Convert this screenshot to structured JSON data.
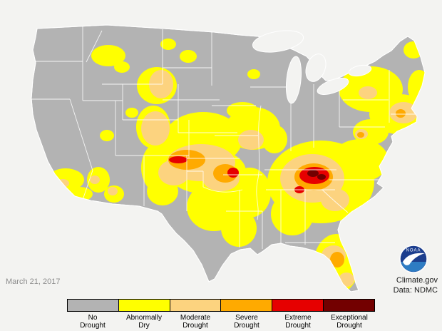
{
  "colors": {
    "background": "#f3f3f1",
    "land": "#b3b3b3",
    "state_line": "#ffffff",
    "d0": "#ffff00",
    "d1": "#fcd37f",
    "d2": "#ffaa00",
    "d3": "#e60000",
    "d4": "#730000",
    "noaa_blue": "#1c3e8e",
    "noaa_light": "#2e7cc3"
  },
  "map": {
    "date_label": "March 21, 2017",
    "regions": [
      {
        "category": "d0",
        "shape": [
          152,
          78,
          24,
          15
        ]
      },
      {
        "category": "d0",
        "shape": [
          171,
          94,
          11,
          8
        ]
      },
      {
        "category": "d0",
        "shape": [
          236,
          62,
          11,
          8
        ]
      },
      {
        "category": "d0",
        "shape": [
          264,
          79,
          12,
          9
        ]
      },
      {
        "category": "d0",
        "shape": [
          220,
          120,
          28,
          26
        ]
      },
      {
        "category": "d0",
        "shape": [
          215,
          178,
          24,
          30
        ]
      },
      {
        "category": "d0",
        "shape": [
          228,
          235,
          30,
          38
        ]
      },
      {
        "category": "d0",
        "shape": [
          228,
          268,
          22,
          20
        ]
      },
      {
        "category": "d0",
        "shape": [
          285,
          195,
          55,
          38
        ]
      },
      {
        "category": "d0",
        "shape": [
          290,
          240,
          55,
          32
        ]
      },
      {
        "category": "d0",
        "shape": [
          300,
          290,
          38,
          34
        ]
      },
      {
        "category": "d0",
        "shape": [
          335,
          320,
          25,
          26
        ]
      },
      {
        "category": "d0",
        "shape": [
          350,
          270,
          30,
          35
        ]
      },
      {
        "category": "d0",
        "shape": [
          355,
          180,
          38,
          30
        ]
      },
      {
        "category": "d0",
        "shape": [
          385,
          195,
          18,
          20
        ]
      },
      {
        "category": "d0",
        "shape": [
          340,
          155,
          22,
          12
        ]
      },
      {
        "category": "d0",
        "shape": [
          356,
          104,
          9,
          7
        ]
      },
      {
        "category": "d0",
        "shape": [
          450,
          255,
          75,
          58
        ]
      },
      {
        "category": "d0",
        "shape": [
          505,
          225,
          40,
          30
        ]
      },
      {
        "category": "d0",
        "shape": [
          410,
          300,
          30,
          30
        ]
      },
      {
        "category": "d0",
        "shape": [
          472,
          370,
          32,
          42
        ]
      },
      {
        "category": "d0",
        "shape": [
          520,
          125,
          45,
          32
        ]
      },
      {
        "category": "d0",
        "shape": [
          560,
          160,
          42,
          28
        ]
      },
      {
        "category": "d0",
        "shape": [
          580,
          70,
          14,
          12
        ]
      },
      {
        "category": "d0",
        "shape": [
          588,
          122,
          16,
          24
        ]
      },
      {
        "category": "d0",
        "shape": [
          520,
          185,
          25,
          18
        ]
      },
      {
        "category": "d0",
        "shape": [
          92,
          252,
          26,
          16
        ]
      },
      {
        "category": "d0",
        "shape": [
          112,
          272,
          18,
          10
        ]
      },
      {
        "category": "d0",
        "shape": [
          138,
          252,
          16,
          18
        ]
      },
      {
        "category": "d0",
        "shape": [
          160,
          272,
          14,
          12
        ]
      },
      {
        "category": "d0",
        "shape": [
          150,
          190,
          10,
          8
        ]
      },
      {
        "category": "d0",
        "shape": [
          185,
          158,
          9,
          7
        ]
      },
      {
        "category": "d1",
        "shape": [
          226,
          118,
          17,
          20
        ]
      },
      {
        "category": "d1",
        "shape": [
          218,
          180,
          20,
          24
        ]
      },
      {
        "category": "d1",
        "shape": [
          282,
          228,
          48,
          26
        ]
      },
      {
        "category": "d1",
        "shape": [
          244,
          242,
          22,
          18
        ]
      },
      {
        "category": "d1",
        "shape": [
          310,
          250,
          26,
          18
        ]
      },
      {
        "category": "d1",
        "shape": [
          352,
          196,
          18,
          14
        ]
      },
      {
        "category": "d1",
        "shape": [
          438,
          250,
          45,
          34
        ]
      },
      {
        "category": "d1",
        "shape": [
          470,
          280,
          20,
          16
        ]
      },
      {
        "category": "d1",
        "shape": [
          566,
          158,
          20,
          15
        ]
      },
      {
        "category": "d1",
        "shape": [
          516,
          130,
          13,
          9
        ]
      },
      {
        "category": "d1",
        "shape": [
          468,
          358,
          17,
          14
        ]
      },
      {
        "category": "d1",
        "shape": [
          486,
          392,
          11,
          10
        ]
      },
      {
        "category": "d1",
        "shape": [
          507,
          188,
          9,
          7
        ]
      },
      {
        "category": "d1",
        "shape": [
          133,
          252,
          7,
          6
        ]
      },
      {
        "category": "d1",
        "shape": [
          158,
          268,
          7,
          6
        ]
      },
      {
        "category": "d1",
        "shape": [
          88,
          257,
          9,
          6
        ]
      },
      {
        "category": "d2",
        "shape": [
          262,
          224,
          26,
          14
        ]
      },
      {
        "category": "d2",
        "shape": [
          316,
          243,
          17,
          13
        ]
      },
      {
        "category": "d2",
        "shape": [
          440,
          248,
          27,
          19
        ]
      },
      {
        "category": "d2",
        "shape": [
          473,
          364,
          10,
          11
        ]
      },
      {
        "category": "d2",
        "shape": [
          562,
          159,
          7,
          6
        ]
      },
      {
        "category": "d2",
        "shape": [
          506,
          189,
          5,
          4
        ]
      },
      {
        "category": "d3",
        "shape": [
          250,
          224,
          13,
          5
        ]
      },
      {
        "category": "d3",
        "shape": [
          327,
          242,
          8,
          7
        ]
      },
      {
        "category": "d3",
        "shape": [
          441,
          246,
          21,
          12
        ]
      },
      {
        "category": "d3",
        "shape": [
          420,
          266,
          7,
          5
        ]
      },
      {
        "category": "d4",
        "shape": [
          439,
          243,
          8,
          5
        ]
      },
      {
        "category": "d4",
        "shape": [
          451,
          248,
          6,
          4
        ]
      }
    ]
  },
  "attribution": {
    "line1": "Climate.gov",
    "line2": "Data: NDMC"
  },
  "noaa": {
    "label": "NOAA"
  },
  "legend": {
    "items": [
      {
        "label_top": "No",
        "label_bottom": "Drought",
        "color": "#b3b3b3"
      },
      {
        "label_top": "Abnormally",
        "label_bottom": "Dry",
        "color": "#ffff00"
      },
      {
        "label_top": "Moderate",
        "label_bottom": "Drought",
        "color": "#fcd37f"
      },
      {
        "label_top": "Severe",
        "label_bottom": "Drought",
        "color": "#ffaa00"
      },
      {
        "label_top": "Extreme",
        "label_bottom": "Drought",
        "color": "#e60000"
      },
      {
        "label_top": "Exceptional",
        "label_bottom": "Drought",
        "color": "#730000"
      }
    ]
  }
}
